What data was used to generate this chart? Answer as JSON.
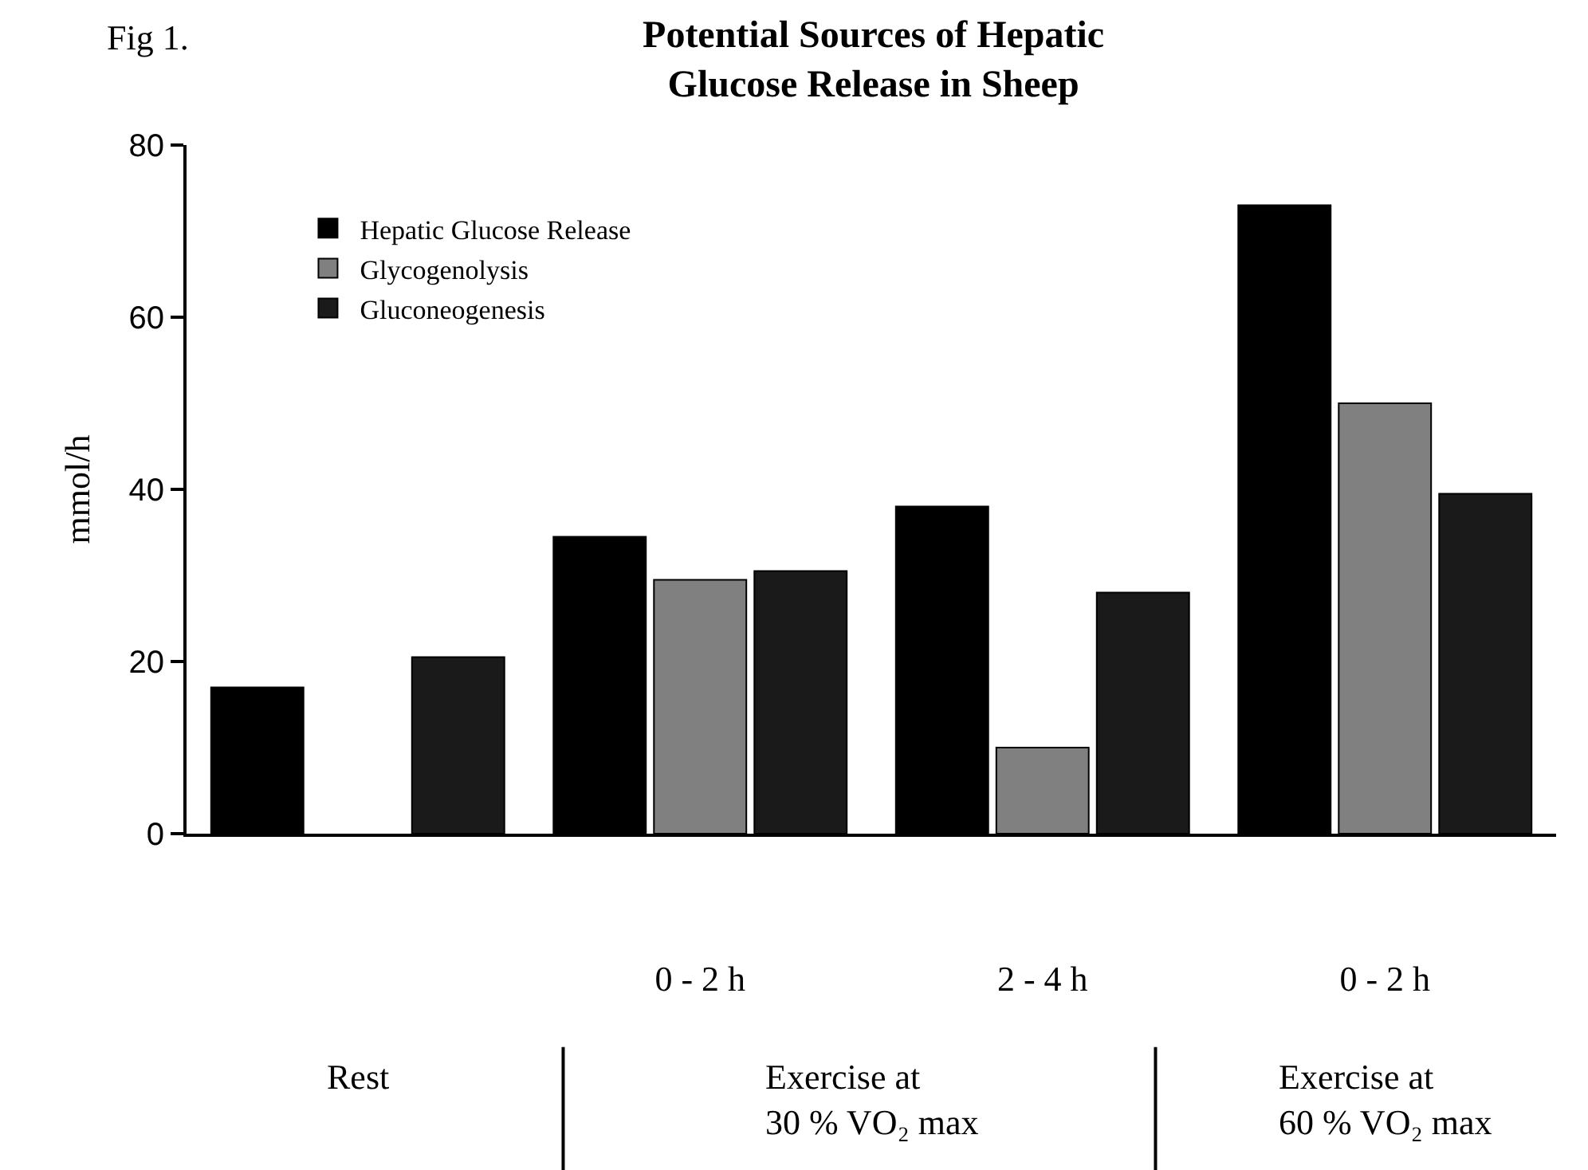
{
  "chart_data": {
    "type": "bar",
    "title": "Potential Sources of Hepatic\nGlucose Release in Sheep",
    "ylabel": "mmol/h",
    "categories": [
      null,
      "0 - 2 h",
      "2 - 4 h",
      "0 - 2 h"
    ],
    "series": [
      {
        "name": "Hepatic Glucose Release",
        "color": "#000000",
        "values": [
          17,
          34.5,
          38,
          73
        ]
      },
      {
        "name": "Glycogenolysis",
        "color": "#808080",
        "values": [
          null,
          29.5,
          10,
          50
        ]
      },
      {
        "name": "Gluconeogenesis",
        "color": "#1a1a1a",
        "values": [
          20.5,
          30.5,
          28,
          39.5
        ]
      }
    ],
    "ylim": [
      0,
      80
    ],
    "yticks": [
      0,
      20,
      40,
      60,
      80
    ],
    "grid": false,
    "legend": "top left",
    "annotations": [
      "Fig 1.",
      "Rest",
      "Exercise at\n30 % VO₂ max",
      "Exercise at\n60 % VO₂ max"
    ]
  }
}
